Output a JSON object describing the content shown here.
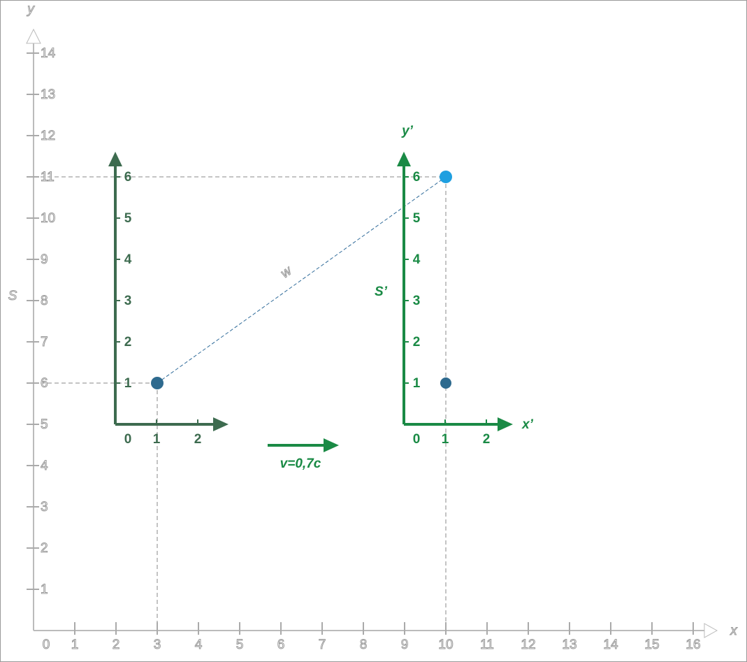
{
  "frame_s": {
    "label": "S",
    "x_axis_label": "x",
    "y_axis_label": "y",
    "x_ticks": [
      0,
      1,
      2,
      3,
      4,
      5,
      6,
      7,
      8,
      9,
      10,
      11,
      12,
      13,
      14,
      15,
      16
    ],
    "y_ticks": [
      1,
      2,
      3,
      4,
      5,
      6,
      7,
      8,
      9,
      10,
      11,
      12,
      13,
      14
    ]
  },
  "frame_1": {
    "x_ticks": [
      0,
      1,
      2
    ],
    "y_ticks": [
      1,
      2,
      3,
      4,
      5,
      6
    ]
  },
  "frame_2": {
    "label": "S’",
    "x_axis_label": "x’",
    "y_axis_label": "y’",
    "x_ticks": [
      0,
      1,
      2
    ],
    "y_ticks": [
      1,
      2,
      3,
      4,
      5,
      6
    ]
  },
  "velocity_label": "v=0,7c",
  "distance_label": "w"
}
